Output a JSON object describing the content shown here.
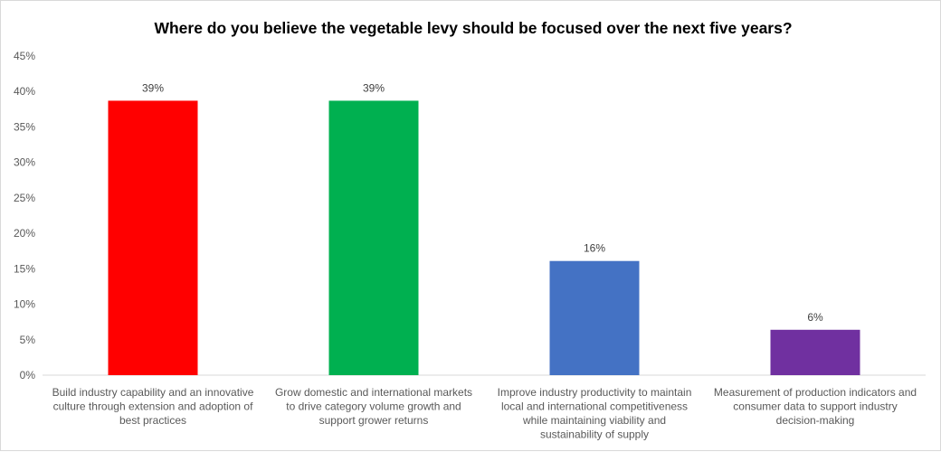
{
  "chart_data": {
    "type": "bar",
    "title": "Where do you believe the vegetable levy should be focused over the next five years?",
    "xlabel": "",
    "ylabel": "",
    "ylim": [
      0,
      45
    ],
    "y_ticks": [
      "0%",
      "5%",
      "10%",
      "15%",
      "20%",
      "25%",
      "30%",
      "35%",
      "40%",
      "45%"
    ],
    "grid": false,
    "legend": "none",
    "categories": [
      [
        "Build industry capability and an innovative",
        "culture through extension and adoption of",
        "best practices"
      ],
      [
        "Grow domestic and international markets",
        "to drive category volume growth and",
        "support grower returns"
      ],
      [
        "Improve industry productivity to maintain",
        "local and international competitiveness",
        "while maintaining viability and",
        "sustainability of supply"
      ],
      [
        "Measurement of production indicators and",
        "consumer data to support industry",
        "decision-making"
      ]
    ],
    "values": [
      38.7,
      38.7,
      16.1,
      6.4
    ],
    "data_labels": [
      "39%",
      "39%",
      "16%",
      "6%"
    ],
    "colors": [
      "#ff0000",
      "#00b050",
      "#4472c4",
      "#7030a0"
    ]
  }
}
